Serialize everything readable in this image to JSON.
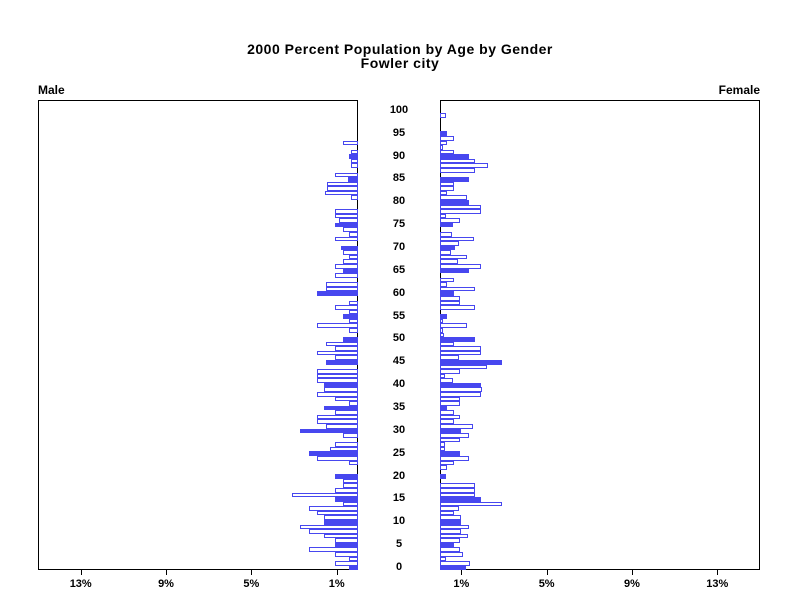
{
  "header": {
    "title_line1": "2000 Percent Population by Age by Gender",
    "title_line2": "Fowler city",
    "left_panel_label": "Male",
    "right_panel_label": "Female"
  },
  "colors": {
    "bar_blue": "#4747EF",
    "axis_black": "#000000",
    "background": "#FFFFFF"
  },
  "chart_data": {
    "type": "bar",
    "variant": "population-pyramid",
    "title": "2000 Percent Population by Age by Gender",
    "subtitle": "Fowler city",
    "left_label": "Male",
    "right_label": "Female",
    "age_min": 0,
    "age_max": 100,
    "age_tick_interval": 5,
    "age_tick_labels": [
      "0",
      "5",
      "10",
      "15",
      "20",
      "25",
      "30",
      "35",
      "40",
      "45",
      "50",
      "55",
      "60",
      "65",
      "70",
      "75",
      "80",
      "85",
      "90",
      "95",
      "100"
    ],
    "x_axis": {
      "unit": "percent of population",
      "tick_values": [
        1,
        5,
        9,
        13
      ],
      "male_tick_labels": [
        "13%",
        "9%",
        "5%",
        "1%"
      ],
      "female_tick_labels": [
        "1%",
        "5%",
        "9%",
        "13%"
      ],
      "xlim": [
        0,
        15
      ],
      "grid": false
    },
    "highlight_rule": "bars at ages divisible by 5 are solid blue; other ages are white with blue outline",
    "series": [
      {
        "name": "Male",
        "values": [
          0.4,
          1.1,
          0.4,
          1.1,
          2.3,
          1.1,
          1.1,
          1.6,
          2.3,
          2.7,
          1.6,
          1.6,
          1.9,
          2.3,
          0.7,
          1.1,
          3.1,
          1.1,
          0.7,
          0.7,
          1.1,
          0,
          0,
          0.4,
          1.9,
          2.3,
          1.3,
          1.1,
          0,
          0.7,
          2.7,
          1.5,
          1.9,
          1.9,
          1.1,
          1.6,
          0.4,
          1.1,
          1.9,
          1.6,
          1.6,
          1.9,
          1.9,
          1.9,
          0,
          1.5,
          1.1,
          1.9,
          1.1,
          1.5,
          0.7,
          0,
          0.4,
          1.9,
          0.4,
          0.7,
          0.4,
          1.1,
          0.4,
          0,
          1.9,
          1.5,
          1.5,
          0,
          1.1,
          0.7,
          1.1,
          0.7,
          0.4,
          0.7,
          0.8,
          0,
          1.1,
          0.4,
          0.7,
          1.1,
          0.9,
          1.1,
          1.1,
          0,
          0,
          0.35,
          1.55,
          1.45,
          1.45,
          0.45,
          1.1,
          0,
          0.35,
          0.35,
          0.4,
          0.35,
          0,
          0.7,
          0,
          0,
          0,
          0,
          0,
          0,
          0
        ]
      },
      {
        "name": "Female",
        "values": [
          1.2,
          1.4,
          0.3,
          1.1,
          0.95,
          0.65,
          0.95,
          1.3,
          1.0,
          1.35,
          1.0,
          1.0,
          0.65,
          0.9,
          2.9,
          1.9,
          1.65,
          1.65,
          1.65,
          0,
          0.3,
          0,
          0.35,
          0.65,
          1.35,
          0.95,
          0.25,
          0.25,
          0.95,
          1.35,
          1.0,
          1.55,
          0.65,
          0.95,
          0.65,
          0.35,
          0.95,
          0.95,
          1.9,
          1.95,
          1.9,
          0.6,
          0.25,
          0.95,
          2.2,
          2.9,
          0.9,
          1.9,
          1.9,
          0.65,
          1.65,
          0.2,
          0.15,
          1.25,
          0.15,
          0.35,
          0,
          1.65,
          0.95,
          0.95,
          0.65,
          1.65,
          0.35,
          0.65,
          0,
          1.35,
          1.9,
          0.85,
          1.25,
          0.5,
          0.7,
          0.9,
          1.6,
          0.55,
          0,
          0.6,
          0.95,
          0.3,
          1.9,
          1.9,
          1.35,
          1.25,
          0.35,
          0.65,
          0.65,
          1.35,
          0,
          1.65,
          2.25,
          1.65,
          1.35,
          0.65,
          0.15,
          0.35,
          0.65,
          0.35,
          0,
          0,
          0,
          0.3,
          0
        ]
      }
    ]
  }
}
